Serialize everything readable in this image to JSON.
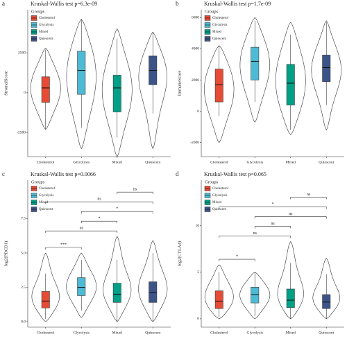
{
  "chart_data": [
    {
      "type": "violin",
      "panel": "a",
      "title": "Kruskal-Wallis test p=6.3e-09",
      "y_label": "StromalScore",
      "legend_title": "Groups",
      "ylim": [
        -4000,
        5200
      ],
      "yticks": [
        -2500,
        0,
        2500
      ],
      "groups": [
        {
          "name": "Cholesterol",
          "color": "#E64B35",
          "min": -2300,
          "q1": -600,
          "median": 300,
          "q3": 1000,
          "max": 2700,
          "range": [
            -2300,
            2800
          ]
        },
        {
          "name": "Glycolysis",
          "color": "#4DBBD5",
          "min": -2200,
          "q1": -100,
          "median": 1400,
          "q3": 2600,
          "max": 4600,
          "range": [
            -3500,
            4600
          ]
        },
        {
          "name": "Mixed",
          "color": "#00A087",
          "min": -2800,
          "q1": -1200,
          "median": 300,
          "q3": 1100,
          "max": 3400,
          "range": [
            -4000,
            4000
          ]
        },
        {
          "name": "Quiescent",
          "color": "#3C5488",
          "min": -1300,
          "q1": 500,
          "median": 1400,
          "q3": 2300,
          "max": 3800,
          "range": [
            -3500,
            3800
          ]
        }
      ],
      "comparisons": []
    },
    {
      "type": "violin",
      "panel": "b",
      "title": "Kruskal-Wallis test p=1.7e-09",
      "y_label": "ImmuneScore",
      "legend_title": "Groups",
      "ylim": [
        -2900,
        6500
      ],
      "yticks": [
        -2000,
        0,
        2000,
        4000,
        6000
      ],
      "groups": [
        {
          "name": "Cholesterol",
          "color": "#E64B35",
          "min": -300,
          "q1": 600,
          "median": 1700,
          "q3": 2700,
          "max": 4200,
          "range": [
            -2000,
            4200
          ]
        },
        {
          "name": "Glycolysis",
          "color": "#4DBBD5",
          "min": 600,
          "q1": 2000,
          "median": 3200,
          "q3": 4100,
          "max": 5800,
          "range": [
            -700,
            6000
          ]
        },
        {
          "name": "Mixed",
          "color": "#00A087",
          "min": -1200,
          "q1": 400,
          "median": 1800,
          "q3": 3000,
          "max": 4900,
          "range": [
            -1500,
            5700
          ]
        },
        {
          "name": "Quiescent",
          "color": "#3C5488",
          "min": 400,
          "q1": 1900,
          "median": 2800,
          "q3": 3600,
          "max": 5700,
          "range": [
            -1200,
            5800
          ]
        }
      ],
      "comparisons": []
    },
    {
      "type": "violin",
      "panel": "c",
      "title": "Kruskal-Wallis test p=0.0066",
      "y_label": "log2(PDCD1)",
      "legend_title": "Groups",
      "ylim": [
        -0.4,
        10.3
      ],
      "yticks": [
        {
          "value": 0,
          "label": "0.0"
        },
        2.5,
        {
          "value": 5,
          "label": "5.0"
        },
        7.5
      ],
      "groups": [
        {
          "name": "Cholesterol",
          "color": "#E64B35",
          "min": 0.2,
          "q1": 1.0,
          "median": 1.5,
          "q3": 2.2,
          "max": 3.5,
          "range": [
            0,
            5
          ]
        },
        {
          "name": "Glycolysis",
          "color": "#4DBBD5",
          "min": 0.8,
          "q1": 1.9,
          "median": 2.5,
          "q3": 3.2,
          "max": 4.5,
          "range": [
            0.3,
            5
          ]
        },
        {
          "name": "Mixed",
          "color": "#00A087",
          "min": 0,
          "q1": 1.4,
          "median": 2.0,
          "q3": 2.8,
          "max": 4.5,
          "range": [
            0,
            6.2
          ]
        },
        {
          "name": "Quiescent",
          "color": "#3C5488",
          "min": 0,
          "q1": 1.4,
          "median": 2.1,
          "q3": 2.9,
          "max": 5,
          "range": [
            0,
            5.9
          ]
        }
      ],
      "comparisons": [
        {
          "pair": [
            0,
            1
          ],
          "label": "***"
        },
        {
          "pair": [
            0,
            2
          ],
          "label": "ns"
        },
        {
          "pair": [
            1,
            2
          ],
          "label": "*"
        },
        {
          "pair": [
            1,
            3
          ],
          "label": "*"
        },
        {
          "pair": [
            0,
            3
          ],
          "label": "ns"
        },
        {
          "pair": [
            2,
            3
          ],
          "label": "ns"
        }
      ]
    },
    {
      "type": "violin",
      "panel": "d",
      "title": "Kruskal-Wallis test p=0.065",
      "y_label": "log2(CTLA4)",
      "legend_title": "Groups",
      "ylim": [
        -0.9,
        14.9
      ],
      "yticks": [
        0,
        5,
        10
      ],
      "groups": [
        {
          "name": "Cholesterol",
          "color": "#E64B35",
          "min": 0.2,
          "q1": 1.1,
          "median": 1.9,
          "q3": 3.0,
          "max": 5,
          "range": [
            0,
            5.8
          ]
        },
        {
          "name": "Glycolysis",
          "color": "#4DBBD5",
          "min": 0.3,
          "q1": 1.7,
          "median": 2.6,
          "q3": 3.4,
          "max": 5,
          "range": [
            0,
            5
          ]
        },
        {
          "name": "Mixed",
          "color": "#00A087",
          "min": 0,
          "q1": 1.2,
          "median": 2.0,
          "q3": 3.2,
          "max": 6,
          "range": [
            0,
            8.3
          ]
        },
        {
          "name": "Quiescent",
          "color": "#3C5488",
          "min": 0,
          "q1": 1.1,
          "median": 1.8,
          "q3": 2.6,
          "max": 4.8,
          "range": [
            0,
            6.5
          ]
        }
      ],
      "comparisons": [
        {
          "pair": [
            0,
            1
          ],
          "label": "*"
        },
        {
          "pair": [
            0,
            2
          ],
          "label": "ns"
        },
        {
          "pair": [
            1,
            2
          ],
          "label": "ns"
        },
        {
          "pair": [
            1,
            3
          ],
          "label": "ns"
        },
        {
          "pair": [
            0,
            3
          ],
          "label": "*"
        },
        {
          "pair": [
            2,
            3
          ],
          "label": "ns"
        }
      ]
    }
  ]
}
